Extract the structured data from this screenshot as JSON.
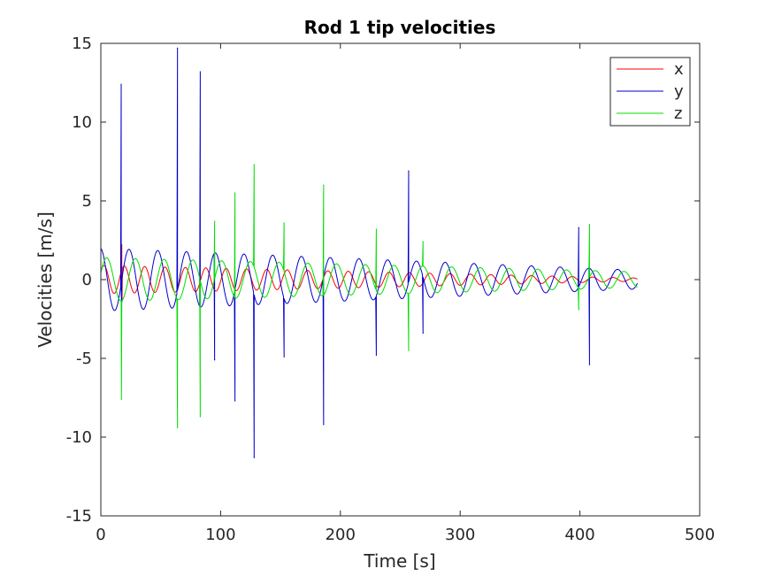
{
  "chart_data": {
    "type": "line",
    "title": "Rod 1 tip velocities",
    "xlabel": "Time [s]",
    "ylabel": "Velocities [m/s]",
    "xlim": [
      0,
      500
    ],
    "ylim": [
      -15,
      15
    ],
    "xticks": [
      0,
      100,
      200,
      300,
      400,
      500
    ],
    "xtick_labels": [
      "0",
      "100",
      "200",
      "300",
      "400",
      "500"
    ],
    "yticks": [
      -15,
      -10,
      -5,
      0,
      5,
      10,
      15
    ],
    "ytick_labels": [
      "-15",
      "-10",
      "-5",
      "0",
      "5",
      "10",
      "15"
    ],
    "grid": false,
    "legend": "top-right",
    "x_end": 448,
    "series": [
      {
        "name": "x",
        "color": "#ff0000",
        "oscillation": {
          "period": 17,
          "amplitude_start": 0.9,
          "amplitude_end": 0.1,
          "phase": 0.6
        },
        "spikes": [
          {
            "t": 17.5,
            "v": 2.2
          },
          {
            "t": 17.7,
            "v": -1.4
          }
        ]
      },
      {
        "name": "y",
        "color": "#0000cc",
        "oscillation": {
          "period": 24,
          "amplitude_start": 2.0,
          "amplitude_end": 0.6,
          "phase": 1.7
        },
        "spikes": [
          {
            "t": 17,
            "v": 12.4
          },
          {
            "t": 17.3,
            "v": -2.0
          },
          {
            "t": 64,
            "v": 14.7
          },
          {
            "t": 83,
            "v": 13.2
          },
          {
            "t": 95,
            "v": -5.1
          },
          {
            "t": 112,
            "v": -7.7
          },
          {
            "t": 128,
            "v": -11.3
          },
          {
            "t": 153,
            "v": -4.9
          },
          {
            "t": 186,
            "v": -9.2
          },
          {
            "t": 230,
            "v": -4.8
          },
          {
            "t": 257,
            "v": 6.9
          },
          {
            "t": 269,
            "v": -3.4
          },
          {
            "t": 399,
            "v": 3.3
          },
          {
            "t": 408,
            "v": -5.4
          }
        ]
      },
      {
        "name": "z",
        "color": "#00dd00",
        "oscillation": {
          "period": 24,
          "amplitude_start": 1.4,
          "amplitude_end": 0.5,
          "phase": 0.3
        },
        "spikes": [
          {
            "t": 17.2,
            "v": -7.6
          },
          {
            "t": 64,
            "v": -9.4
          },
          {
            "t": 83,
            "v": -8.7
          },
          {
            "t": 95,
            "v": 3.7
          },
          {
            "t": 112,
            "v": 5.5
          },
          {
            "t": 128,
            "v": 7.3
          },
          {
            "t": 153,
            "v": 3.6
          },
          {
            "t": 186,
            "v": 6.0
          },
          {
            "t": 230,
            "v": 3.2
          },
          {
            "t": 257,
            "v": -4.5
          },
          {
            "t": 269,
            "v": 2.4
          },
          {
            "t": 399,
            "v": -1.9
          },
          {
            "t": 408,
            "v": 3.5
          }
        ]
      }
    ]
  }
}
